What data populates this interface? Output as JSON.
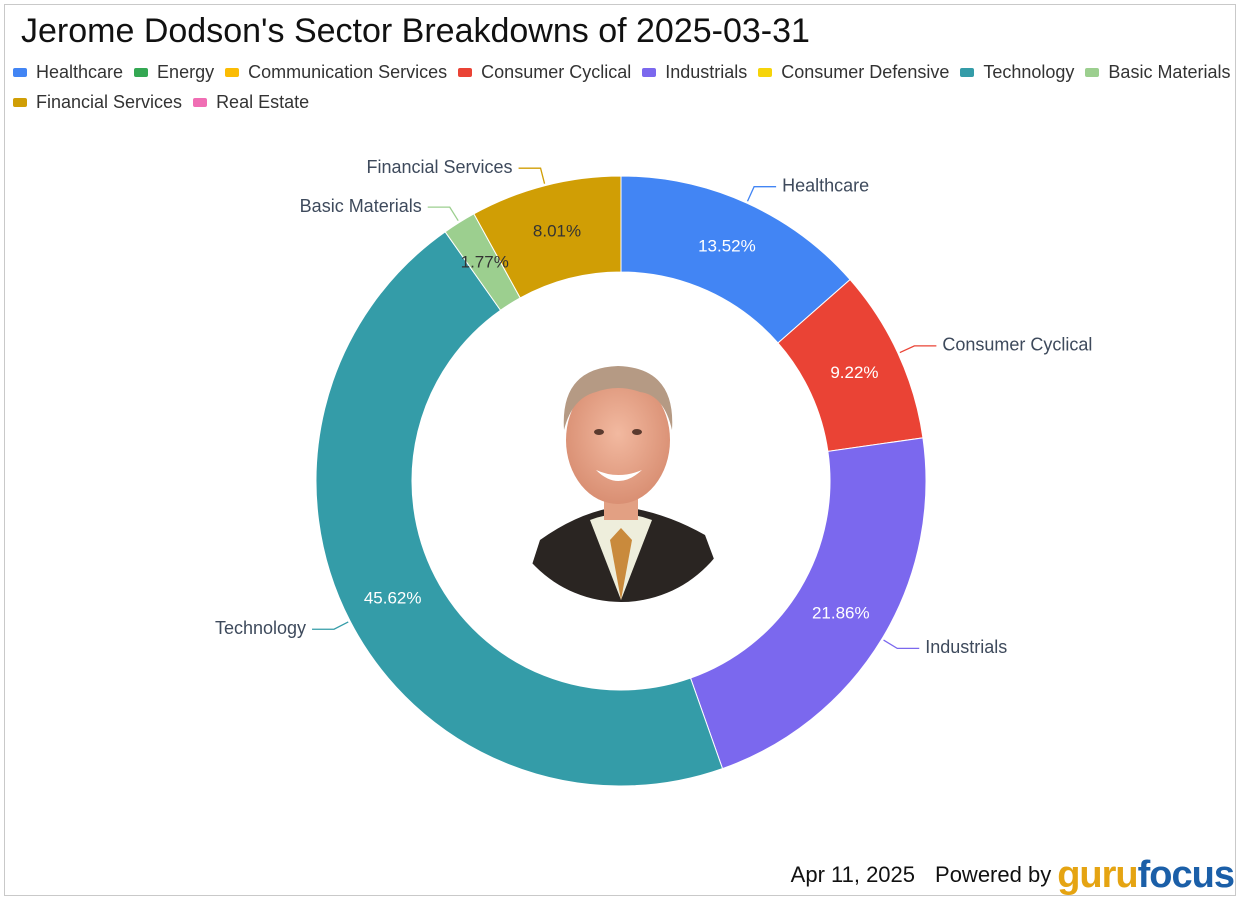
{
  "title": "Jerome Dodson's Sector Breakdowns of 2025-03-31",
  "legend": [
    {
      "label": "Healthcare",
      "color": "#4285f4"
    },
    {
      "label": "Energy",
      "color": "#34a853"
    },
    {
      "label": "Communication Services",
      "color": "#fbbc04"
    },
    {
      "label": "Consumer Cyclical",
      "color": "#ea4335"
    },
    {
      "label": "Industrials",
      "color": "#7b68ee"
    },
    {
      "label": "Consumer Defensive",
      "color": "#f6d40a"
    },
    {
      "label": "Technology",
      "color": "#349ca8"
    },
    {
      "label": "Basic Materials",
      "color": "#9ccf8f"
    },
    {
      "label": "Financial Services",
      "color": "#d09e05"
    },
    {
      "label": "Real Estate",
      "color": "#f06eb4"
    }
  ],
  "chart_data": {
    "type": "pie",
    "title": "Jerome Dodson's Sector Breakdowns of 2025-03-31",
    "donut": true,
    "start_angle_deg": 0,
    "direction": "clockwise",
    "slices": [
      {
        "label": "Healthcare",
        "value": 13.52,
        "value_label": "13.52%",
        "color": "#4285f4",
        "label_color": "#ffffff"
      },
      {
        "label": "Consumer Cyclical",
        "value": 9.22,
        "value_label": "9.22%",
        "color": "#ea4335",
        "label_color": "#ffffff"
      },
      {
        "label": "Industrials",
        "value": 21.86,
        "value_label": "21.86%",
        "color": "#7b68ee",
        "label_color": "#ffffff"
      },
      {
        "label": "Technology",
        "value": 45.62,
        "value_label": "45.62%",
        "color": "#349ca8",
        "label_color": "#ffffff"
      },
      {
        "label": "Basic Materials",
        "value": 1.77,
        "value_label": "1.77%",
        "color": "#9ccf8f",
        "label_color": "#333333"
      },
      {
        "label": "Financial Services",
        "value": 8.01,
        "value_label": "8.01%",
        "color": "#d09e05",
        "label_color": "#333333"
      }
    ]
  },
  "center_image": {
    "icon": "investor-portrait"
  },
  "footer": {
    "date": "Apr 11, 2025",
    "powered_by": "Powered by",
    "logo_part1": "guru",
    "logo_part2": "focus"
  }
}
